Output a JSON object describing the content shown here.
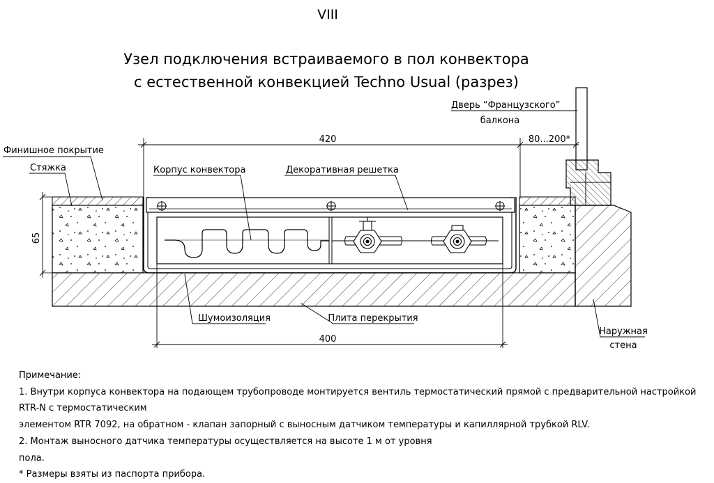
{
  "sheet_number": "VIII",
  "title": {
    "line1": "Узел подключения встраиваемого в пол конвектора",
    "line2": "с естественной конвекцией Techno Usual (разрез)"
  },
  "labels": {
    "finish_coating": "Финишное покрытие",
    "screed": "Стяжка",
    "convector_body": "Корпус конвектора",
    "decorative_grille": "Декоративная решетка",
    "door_line1": "Дверь “Французского”",
    "door_line2": "балкона",
    "noise_insulation": "Шумоизоляция",
    "floor_slab": "Плита перекрытия",
    "outer_wall_line1": "Наружная",
    "outer_wall_line2": "стена"
  },
  "dimensions": {
    "top_width": "420",
    "bottom_width": "400",
    "wall_gap": "80...200*",
    "height": "65"
  },
  "notes": {
    "heading": "Примечание:",
    "item1_part1": "1. Внутри корпуса конвектора на подающем трубопроводе монтируется вентиль термостатический прямой с предварительной настройкой RTR-N с термостатическим",
    "item1_part2": "элементом RTR 7092, на обратном - клапан запорный с выносным датчиком температуры и капиллярной трубкой RLV.",
    "item2_part1": "2. Монтаж выносного датчика температуры осуществляется на высоте 1 м от уровня",
    "item2_part2": "пола.",
    "footnote": "* Размеры взяты из паспорта прибора."
  }
}
